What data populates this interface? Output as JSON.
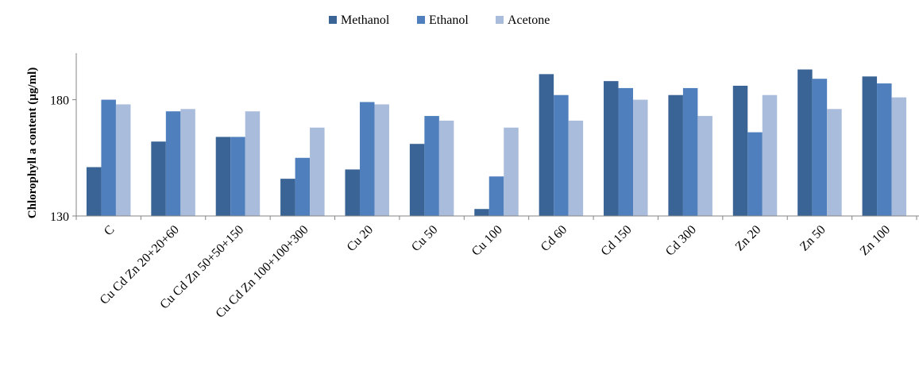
{
  "chart_data": {
    "type": "bar",
    "title": "",
    "xlabel": "",
    "ylabel": "Chlorophyll  a content  (µg/ml)",
    "ylim": [
      130,
      200
    ],
    "yticks": [
      130,
      180
    ],
    "grid": false,
    "legend_position": "top",
    "categories": [
      "C",
      "Cu Cd Zn 20+20+60",
      "Cu Cd Zn 50+50+150",
      "Cu Cd Zn 100+100+300",
      "Cu 20",
      "Cu 50",
      "Cu 100",
      "Cd 60",
      "Cd 150",
      "Cd 300",
      "Zn 20",
      "Zn 50",
      "Zn 100"
    ],
    "series": [
      {
        "name": "Methanol",
        "color": "#3a6496",
        "values": [
          151,
          162,
          164,
          146,
          150,
          161,
          133,
          191,
          188,
          182,
          186,
          193,
          190
        ]
      },
      {
        "name": "Ethanol",
        "color": "#4f80bd",
        "values": [
          180,
          175,
          164,
          155,
          179,
          173,
          147,
          182,
          185,
          185,
          166,
          189,
          187
        ]
      },
      {
        "name": "Acetone",
        "color": "#a9bcdc",
        "values": [
          178,
          176,
          175,
          168,
          178,
          171,
          168,
          171,
          180,
          173,
          182,
          176,
          181
        ]
      }
    ]
  }
}
